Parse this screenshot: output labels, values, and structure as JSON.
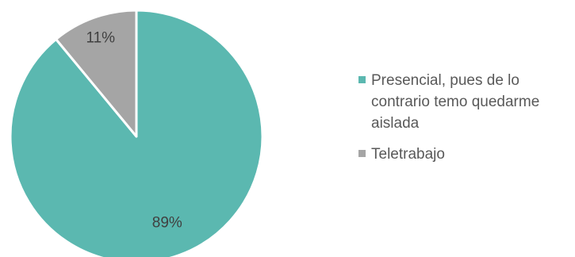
{
  "chart_data": {
    "type": "pie",
    "title": "",
    "slices": [
      {
        "name": "Presencial, pues de lo contrario temo quedarme aislada",
        "value": 89,
        "label": "89%",
        "color": "#5bb8b0"
      },
      {
        "name": "Teletrabajo",
        "value": 11,
        "label": "11%",
        "color": "#a5a5a5"
      }
    ],
    "legend_position": "right"
  }
}
